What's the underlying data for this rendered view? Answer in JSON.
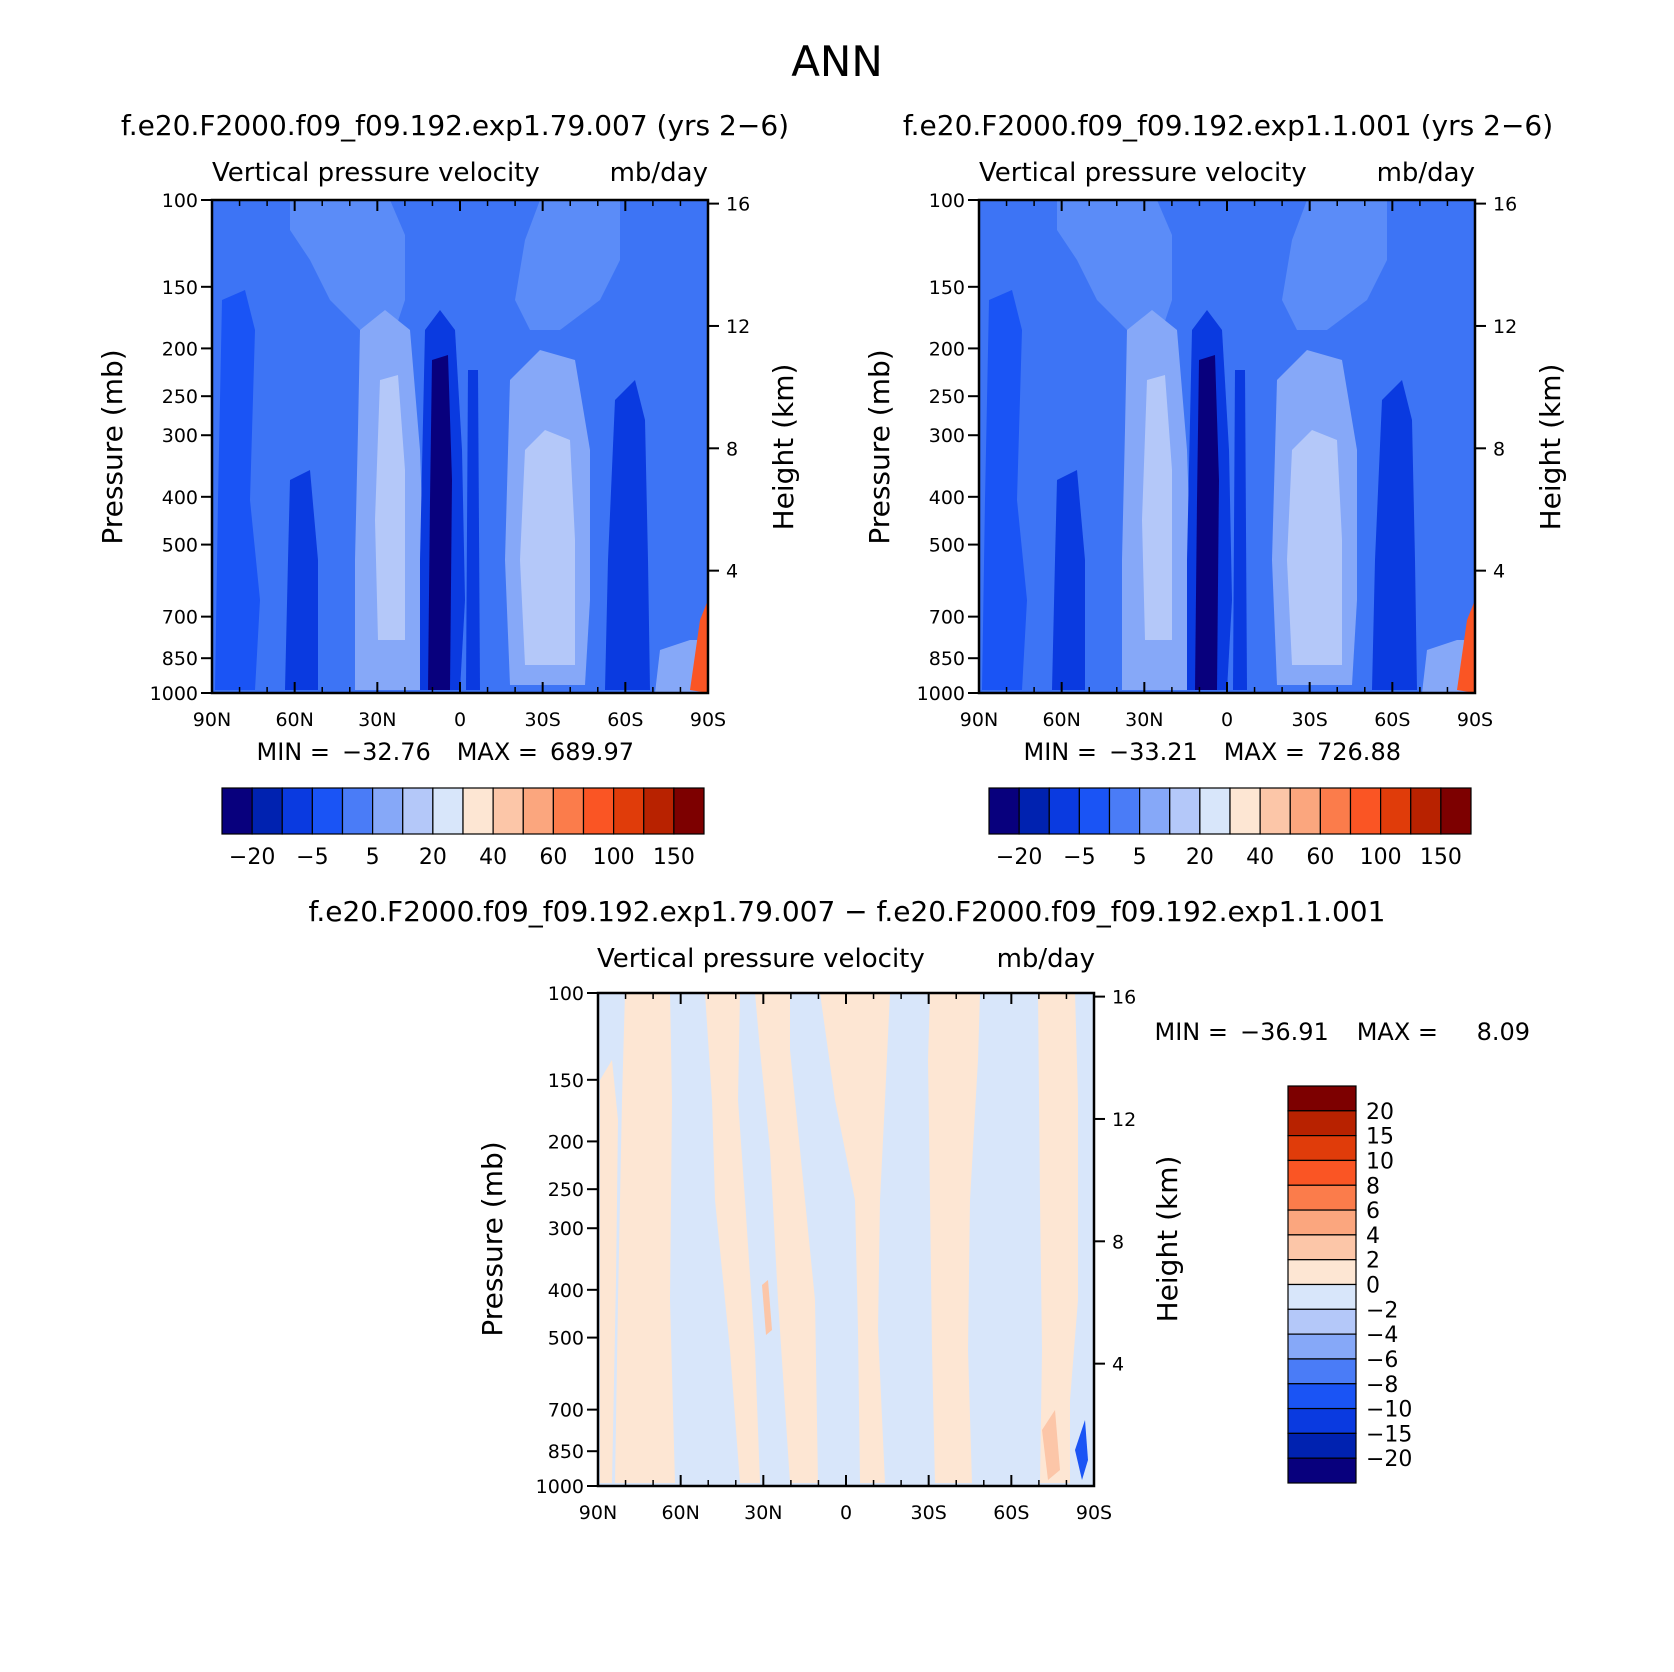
{
  "main_title": "ANN",
  "chart_data": [
    {
      "type": "heatmap",
      "case_title": "f.e20.F2000.f09_f09.192.exp1.79.007 (yrs 2−6)",
      "title_left": "Vertical pressure velocity",
      "title_right": "mb/day",
      "ylabel": "Pressure (mb)",
      "ylabel_right": "Height (km)",
      "x_ticks": [
        "90N",
        "60N",
        "30N",
        "0",
        "30S",
        "60S",
        "90S"
      ],
      "y_ticks": [
        "100",
        "150",
        "200",
        "250",
        "300",
        "400",
        "500",
        "700",
        "850",
        "1000"
      ],
      "y_ticks_right": [
        "16",
        "12",
        "8",
        "4"
      ],
      "ylim": [
        1000,
        100
      ],
      "y_scale": "log",
      "stats": {
        "min_label": "MIN =",
        "min": "−32.76",
        "max_label": "MAX =",
        "max": "689.97"
      },
      "colorbar": {
        "orientation": "horizontal",
        "labels": [
          "−20",
          "−5",
          "5",
          "20",
          "40",
          "60",
          "100",
          "150"
        ],
        "colors": [
          "#08007d",
          "#0022b0",
          "#0a3ae0",
          "#1a54f5",
          "#4a7cf7",
          "#86a8f8",
          "#b4c8f9",
          "#d8e6fa",
          "#fde6d3",
          "#fcc6a8",
          "#fba67e",
          "#fb7c4b",
          "#fa5524",
          "#e03c0a",
          "#b82200",
          "#7d0000"
        ]
      }
    },
    {
      "type": "heatmap",
      "case_title": "f.e20.F2000.f09_f09.192.exp1.1.001 (yrs 2−6)",
      "title_left": "Vertical pressure velocity",
      "title_right": "mb/day",
      "ylabel": "Pressure (mb)",
      "ylabel_right": "Height (km)",
      "x_ticks": [
        "90N",
        "60N",
        "30N",
        "0",
        "30S",
        "60S",
        "90S"
      ],
      "y_ticks": [
        "100",
        "150",
        "200",
        "250",
        "300",
        "400",
        "500",
        "700",
        "850",
        "1000"
      ],
      "y_ticks_right": [
        "16",
        "12",
        "8",
        "4"
      ],
      "ylim": [
        1000,
        100
      ],
      "y_scale": "log",
      "stats": {
        "min_label": "MIN =",
        "min": "−33.21",
        "max_label": "MAX =",
        "max": "726.88"
      },
      "colorbar": {
        "orientation": "horizontal",
        "labels": [
          "−20",
          "−5",
          "5",
          "20",
          "40",
          "60",
          "100",
          "150"
        ],
        "colors": [
          "#08007d",
          "#0022b0",
          "#0a3ae0",
          "#1a54f5",
          "#4a7cf7",
          "#86a8f8",
          "#b4c8f9",
          "#d8e6fa",
          "#fde6d3",
          "#fcc6a8",
          "#fba67e",
          "#fb7c4b",
          "#fa5524",
          "#e03c0a",
          "#b82200",
          "#7d0000"
        ]
      }
    },
    {
      "type": "heatmap",
      "case_title": "f.e20.F2000.f09_f09.192.exp1.79.007 − f.e20.F2000.f09_f09.192.exp1.1.001",
      "title_left": "Vertical pressure velocity",
      "title_right": "mb/day",
      "ylabel": "Pressure (mb)",
      "ylabel_right": "Height (km)",
      "x_ticks": [
        "90N",
        "60N",
        "30N",
        "0",
        "30S",
        "60S",
        "90S"
      ],
      "y_ticks": [
        "100",
        "150",
        "200",
        "250",
        "300",
        "400",
        "500",
        "700",
        "850",
        "1000"
      ],
      "y_ticks_right": [
        "16",
        "12",
        "8",
        "4"
      ],
      "ylim": [
        1000,
        100
      ],
      "y_scale": "log",
      "stats": {
        "min_label": "MIN =",
        "min": "−36.91",
        "max_label": "MAX =",
        "max": "8.09"
      },
      "colorbar": {
        "orientation": "vertical",
        "labels": [
          "20",
          "15",
          "10",
          "8",
          "6",
          "4",
          "2",
          "0",
          "−2",
          "−4",
          "−6",
          "−8",
          "−10",
          "−15",
          "−20"
        ],
        "colors": [
          "#7d0000",
          "#b82200",
          "#e03c0a",
          "#fa5524",
          "#fb7c4b",
          "#fba67e",
          "#fcc6a8",
          "#fde6d3",
          "#d8e6fa",
          "#b4c8f9",
          "#86a8f8",
          "#4a7cf7",
          "#1a54f5",
          "#0a3ae0",
          "#0022b0",
          "#08007d"
        ]
      }
    }
  ]
}
